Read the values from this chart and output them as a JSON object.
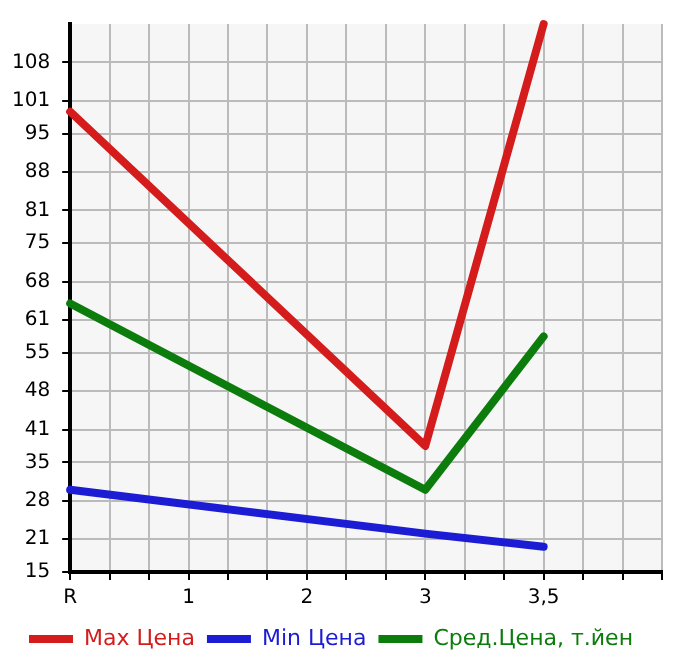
{
  "chart_data": {
    "type": "line",
    "categories": [
      "R",
      "1",
      "2",
      "3",
      "3,5",
      null
    ],
    "series": [
      {
        "name": "Max Цена",
        "color": "#d41c1c",
        "x": [
          "R",
          "3",
          "3,5"
        ],
        "values": [
          99,
          38,
          115
        ]
      },
      {
        "name": "Min Цена",
        "color": "#1c1cd4",
        "x": [
          "R",
          "3",
          "3,5"
        ],
        "values": [
          30,
          22,
          19.6
        ]
      },
      {
        "name": "Сред.Цена, т.йен",
        "color": "#0c7c0c",
        "x": [
          "R",
          "3",
          "3,5"
        ],
        "values": [
          64,
          30,
          58
        ]
      }
    ],
    "ylim": [
      15,
      115
    ],
    "yticks": [
      15,
      21,
      28,
      35,
      41,
      48,
      55,
      61,
      68,
      75,
      81,
      88,
      95,
      101,
      108
    ],
    "grid": true,
    "legend": "bottom",
    "marker": "none",
    "line_style": "solid"
  }
}
